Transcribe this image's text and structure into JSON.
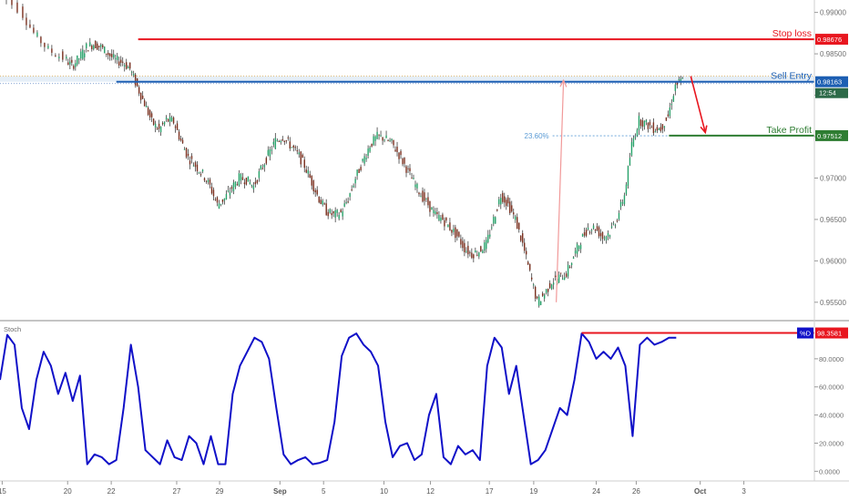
{
  "chart_data": [
    {
      "type": "candlestick",
      "panel": "price",
      "y_ticks": [
        "0.99000",
        "0.98500",
        "0.98000",
        "0.97500",
        "0.97000",
        "0.96500",
        "0.96000",
        "0.95500"
      ],
      "y_tick_values": [
        0.99,
        0.985,
        0.98,
        0.975,
        0.97,
        0.965,
        0.96,
        0.955
      ],
      "ylim": [
        0.953,
        0.9915
      ],
      "x_ticks": [
        "15",
        "20",
        "22",
        "27",
        "29",
        "Sep",
        "5",
        "10",
        "12",
        "17",
        "19",
        "24",
        "26",
        "Oct",
        "3"
      ],
      "price_path": [
        [
          0,
          0.9925
        ],
        [
          3,
          0.9905
        ],
        [
          5,
          0.9875
        ],
        [
          7,
          0.9855
        ],
        [
          9,
          0.9845
        ],
        [
          10,
          0.9835
        ],
        [
          11,
          0.9845
        ],
        [
          12,
          0.9858
        ],
        [
          13,
          0.9862
        ],
        [
          14,
          0.9858
        ],
        [
          15,
          0.985
        ],
        [
          16,
          0.9842
        ],
        [
          17,
          0.984
        ],
        [
          18,
          0.9832
        ],
        [
          19,
          0.981
        ],
        [
          20,
          0.979
        ],
        [
          21,
          0.9768
        ],
        [
          22,
          0.9758
        ],
        [
          23,
          0.977
        ],
        [
          24,
          0.9768
        ],
        [
          25,
          0.9745
        ],
        [
          26,
          0.9725
        ],
        [
          27,
          0.9715
        ],
        [
          28,
          0.9705
        ],
        [
          29,
          0.969
        ],
        [
          30,
          0.9668
        ],
        [
          31,
          0.9675
        ],
        [
          32,
          0.9688
        ],
        [
          33,
          0.97
        ],
        [
          34,
          0.9698
        ],
        [
          35,
          0.969
        ],
        [
          36,
          0.971
        ],
        [
          37,
          0.9728
        ],
        [
          38,
          0.9745
        ],
        [
          39,
          0.975
        ],
        [
          40,
          0.974
        ],
        [
          41,
          0.973
        ],
        [
          42,
          0.9715
        ],
        [
          43,
          0.9695
        ],
        [
          44,
          0.9675
        ],
        [
          45,
          0.966
        ],
        [
          46,
          0.9655
        ],
        [
          47,
          0.9658
        ],
        [
          48,
          0.9675
        ],
        [
          49,
          0.97
        ],
        [
          50,
          0.972
        ],
        [
          51,
          0.974
        ],
        [
          52,
          0.975
        ],
        [
          53,
          0.9748
        ],
        [
          54,
          0.9742
        ],
        [
          55,
          0.9728
        ],
        [
          56,
          0.9712
        ],
        [
          57,
          0.9695
        ],
        [
          58,
          0.968
        ],
        [
          59,
          0.9668
        ],
        [
          60,
          0.9655
        ],
        [
          61,
          0.965
        ],
        [
          62,
          0.964
        ],
        [
          63,
          0.963
        ],
        [
          64,
          0.9615
        ],
        [
          65,
          0.9608
        ],
        [
          66,
          0.9612
        ],
        [
          67,
          0.962
        ],
        [
          68,
          0.965
        ],
        [
          69,
          0.968
        ],
        [
          70,
          0.9668
        ],
        [
          71,
          0.965
        ],
        [
          72,
          0.962
        ],
        [
          73,
          0.9585
        ],
        [
          74,
          0.955
        ],
        [
          75,
          0.956
        ],
        [
          76,
          0.9575
        ],
        [
          77,
          0.958
        ],
        [
          78,
          0.9585
        ],
        [
          79,
          0.9605
        ],
        [
          80,
          0.9625
        ],
        [
          81,
          0.964
        ],
        [
          82,
          0.964
        ],
        [
          83,
          0.9628
        ],
        [
          84,
          0.9635
        ],
        [
          85,
          0.9652
        ],
        [
          86,
          0.968
        ],
        [
          87,
          0.974
        ],
        [
          88,
          0.977
        ],
        [
          89,
          0.9765
        ],
        [
          90,
          0.976
        ],
        [
          91,
          0.976
        ],
        [
          92,
          0.9775
        ],
        [
          93,
          0.9812
        ],
        [
          94,
          0.9818
        ]
      ],
      "levels": [
        {
          "label": "Stop loss",
          "value": 0.98676,
          "value_label": "0.98676",
          "color": "#e8161f",
          "start": 19,
          "end": 109
        },
        {
          "label": "Sell Entry",
          "value": 0.98163,
          "value_label": "0.98163",
          "color": "#1d5fb3",
          "start": 16,
          "end": 109
        },
        {
          "label": "Take Profit",
          "value": 0.97512,
          "value_label": "0.97512",
          "color": "#2e7d32",
          "start": 92,
          "end": 109
        }
      ],
      "fib_label": "23.60%",
      "fib_value": 0.9751,
      "countdown_label": "12:54",
      "range_box": {
        "from": 0.98163,
        "to": 0.9823
      },
      "big_arrow": {
        "from_x": 76.5,
        "from_y": 0.955,
        "to_x": 77.5,
        "to_y": 0.9818,
        "color": "#f19999"
      },
      "down_arrow": {
        "from_x": 95,
        "from_y": 0.9823,
        "to_x": 97,
        "to_y": 0.9755,
        "color": "#e8161f"
      }
    },
    {
      "type": "line",
      "panel": "oscillator",
      "indicator_name": "Stoch",
      "series": [
        {
          "name": "%D",
          "color": "#1010c8"
        }
      ],
      "last_value_label": "98.3581",
      "y_ticks": [
        "80.0000",
        "60.0000",
        "40.0000",
        "20.0000",
        "0.0000"
      ],
      "y_tick_values": [
        80,
        60,
        40,
        20,
        0
      ],
      "ylim": [
        -3,
        100
      ],
      "values": [
        [
          0,
          65
        ],
        [
          1,
          97
        ],
        [
          2,
          90
        ],
        [
          3,
          45
        ],
        [
          4,
          30
        ],
        [
          5,
          65
        ],
        [
          6,
          85
        ],
        [
          7,
          75
        ],
        [
          8,
          55
        ],
        [
          9,
          70
        ],
        [
          10,
          50
        ],
        [
          11,
          68
        ],
        [
          12,
          5
        ],
        [
          13,
          12
        ],
        [
          14,
          10
        ],
        [
          15,
          5
        ],
        [
          16,
          8
        ],
        [
          17,
          45
        ],
        [
          18,
          90
        ],
        [
          19,
          60
        ],
        [
          20,
          15
        ],
        [
          21,
          10
        ],
        [
          22,
          5
        ],
        [
          23,
          22
        ],
        [
          24,
          10
        ],
        [
          25,
          8
        ],
        [
          26,
          25
        ],
        [
          27,
          20
        ],
        [
          28,
          5
        ],
        [
          29,
          25
        ],
        [
          30,
          5
        ],
        [
          31,
          5
        ],
        [
          32,
          55
        ],
        [
          33,
          75
        ],
        [
          34,
          85
        ],
        [
          35,
          95
        ],
        [
          36,
          92
        ],
        [
          37,
          80
        ],
        [
          38,
          45
        ],
        [
          39,
          12
        ],
        [
          40,
          5
        ],
        [
          41,
          8
        ],
        [
          42,
          10
        ],
        [
          43,
          5
        ],
        [
          44,
          6
        ],
        [
          45,
          8
        ],
        [
          46,
          35
        ],
        [
          47,
          82
        ],
        [
          48,
          95
        ],
        [
          49,
          98
        ],
        [
          50,
          90
        ],
        [
          51,
          85
        ],
        [
          52,
          75
        ],
        [
          53,
          35
        ],
        [
          54,
          10
        ],
        [
          55,
          18
        ],
        [
          56,
          20
        ],
        [
          57,
          8
        ],
        [
          58,
          12
        ],
        [
          59,
          40
        ],
        [
          60,
          55
        ],
        [
          61,
          10
        ],
        [
          62,
          5
        ],
        [
          63,
          18
        ],
        [
          64,
          12
        ],
        [
          65,
          15
        ],
        [
          66,
          8
        ],
        [
          67,
          75
        ],
        [
          68,
          95
        ],
        [
          69,
          88
        ],
        [
          70,
          55
        ],
        [
          71,
          75
        ],
        [
          72,
          40
        ],
        [
          73,
          5
        ],
        [
          74,
          8
        ],
        [
          75,
          15
        ],
        [
          76,
          30
        ],
        [
          77,
          45
        ],
        [
          78,
          40
        ],
        [
          79,
          65
        ],
        [
          80,
          98
        ],
        [
          81,
          92
        ],
        [
          82,
          80
        ],
        [
          83,
          85
        ],
        [
          84,
          80
        ],
        [
          85,
          88
        ],
        [
          86,
          75
        ],
        [
          87,
          25
        ],
        [
          88,
          90
        ],
        [
          89,
          95
        ],
        [
          90,
          90
        ],
        [
          91,
          92
        ],
        [
          92,
          95
        ],
        [
          93,
          95
        ]
      ],
      "level": {
        "value": 98.3581,
        "color": "#e8161f",
        "start": 80,
        "end": 109
      }
    }
  ]
}
